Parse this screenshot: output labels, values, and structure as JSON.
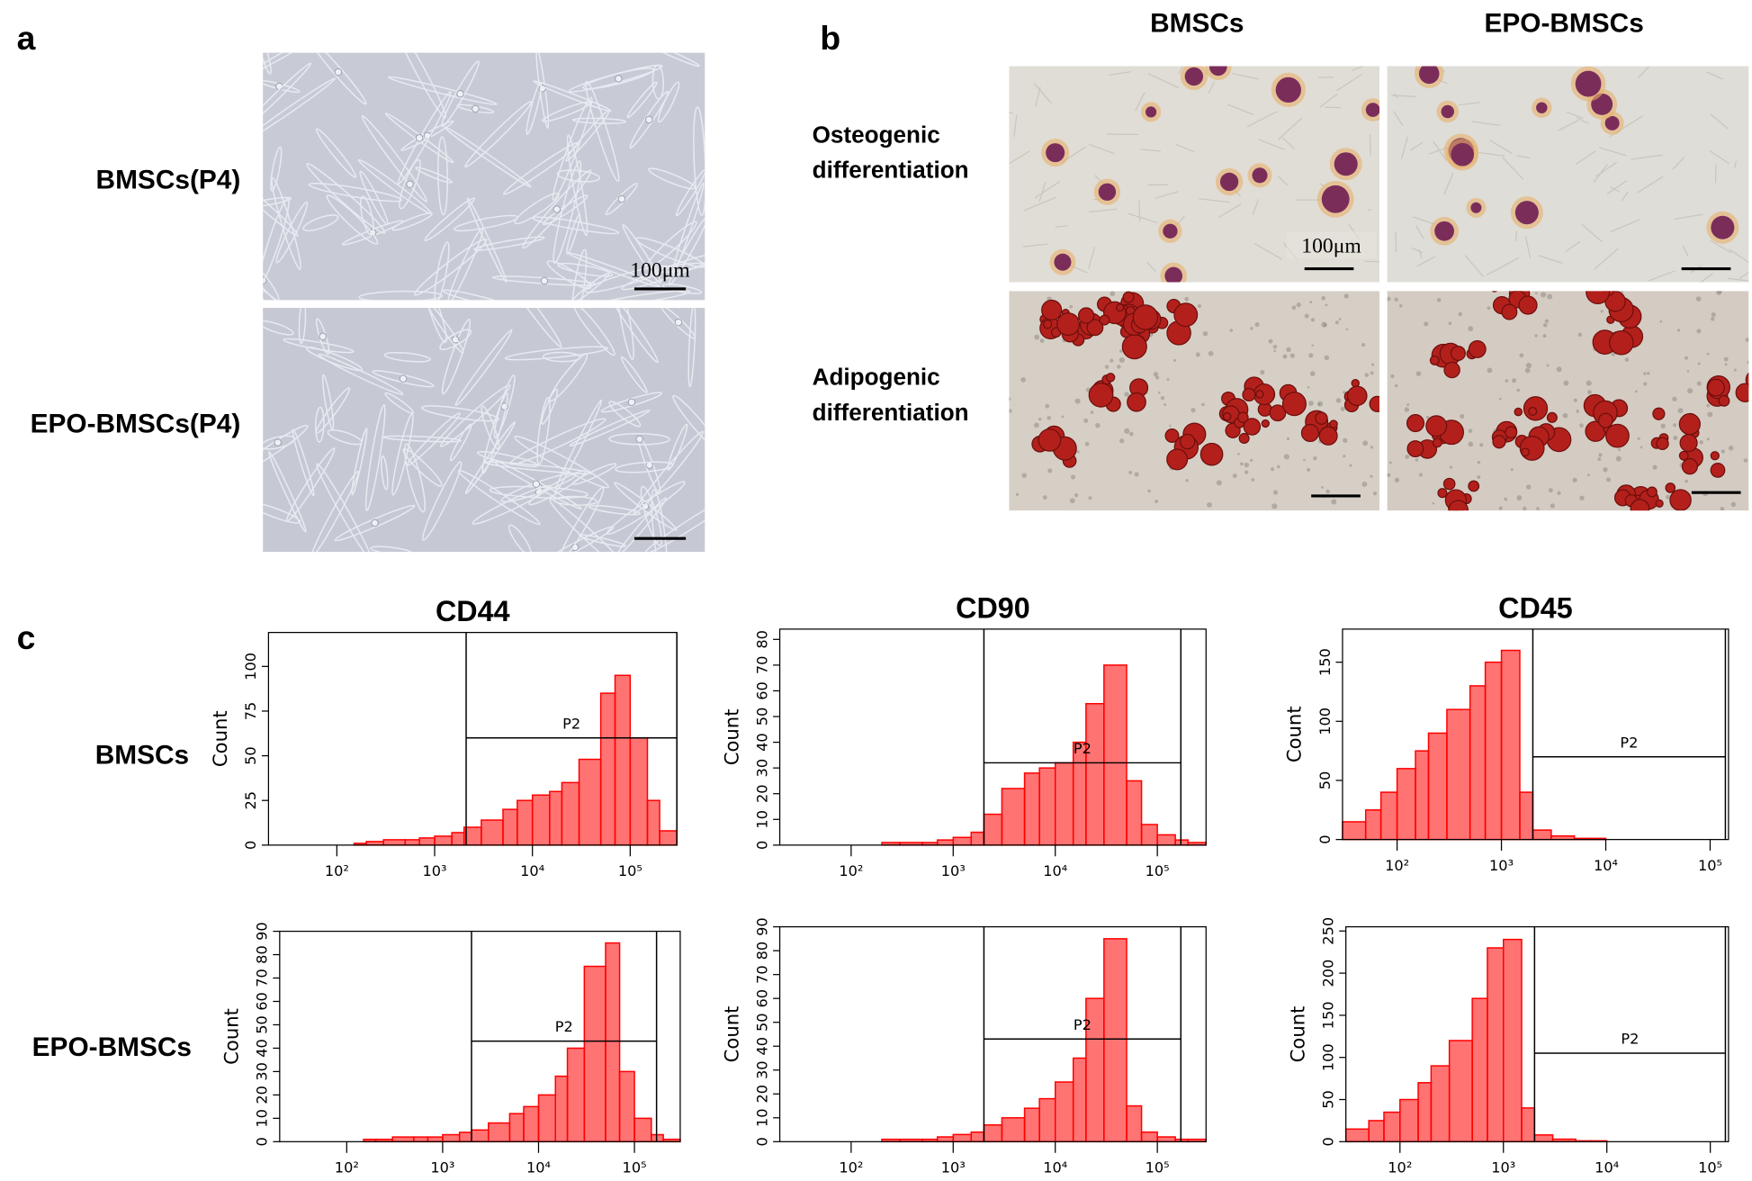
{
  "panel_a": {
    "label": "a",
    "rows": [
      "BMSCs(P4)",
      "EPO-BMSCs(P4)"
    ],
    "scale_bar": "100μm"
  },
  "panel_b": {
    "label": "b",
    "columns": [
      "BMSCs",
      "EPO-BMSCs"
    ],
    "rows": [
      [
        "Osteogenic",
        "differentiation"
      ],
      [
        "Adipogenic",
        "differentiation"
      ]
    ],
    "scale_bar": "100μm"
  },
  "panel_c": {
    "label": "c",
    "rows": [
      "BMSCs",
      "EPO-BMSCs"
    ]
  },
  "chart_data": [
    {
      "type": "histogram",
      "title": "CD44",
      "y_label": "Count",
      "x_scale": "log",
      "color": "#ff0000",
      "xlim": [
        20,
        300000
      ],
      "ylim": [
        0,
        119
      ],
      "yticks": [
        0,
        25,
        50,
        75,
        100
      ],
      "xticks": [
        {
          "value": 100,
          "label": "10²"
        },
        {
          "value": 1000,
          "label": "10³"
        },
        {
          "value": 10000,
          "label": "10⁴"
        },
        {
          "value": 100000,
          "label": "10⁵"
        }
      ],
      "bins": [
        20,
        30,
        50,
        100,
        150,
        200,
        300,
        500,
        700,
        1000,
        1500,
        2000,
        3000,
        5000,
        7000,
        10000,
        15000,
        20000,
        30000,
        50000,
        70000,
        100000,
        150000,
        200000,
        300000
      ],
      "counts": [
        0,
        0,
        0,
        0,
        1,
        2,
        3,
        3,
        4,
        5,
        7,
        10,
        14,
        20,
        25,
        28,
        30,
        35,
        48,
        85,
        95,
        60,
        25,
        8
      ],
      "gate": {
        "label": "P2",
        "range": [
          2100,
          300000
        ],
        "level": 60
      }
    },
    {
      "type": "histogram",
      "title": "CD90",
      "y_label": "Count",
      "x_scale": "log",
      "color": "#ff0000",
      "xlim": [
        20,
        300000
      ],
      "ylim": [
        0,
        84
      ],
      "yticks": [
        0,
        10,
        20,
        30,
        40,
        50,
        60,
        70,
        80
      ],
      "xticks": [
        {
          "value": 100,
          "label": "10²"
        },
        {
          "value": 1000,
          "label": "10³"
        },
        {
          "value": 10000,
          "label": "10⁴"
        },
        {
          "value": 100000,
          "label": "10⁵"
        }
      ],
      "bins": [
        20,
        30,
        50,
        100,
        150,
        200,
        300,
        500,
        700,
        1000,
        1500,
        2000,
        3000,
        5000,
        7000,
        10000,
        15000,
        20000,
        30000,
        50000,
        70000,
        100000,
        150000,
        200000,
        300000
      ],
      "counts": [
        0,
        0,
        0,
        0,
        0,
        1,
        1,
        1,
        2,
        3,
        5,
        12,
        22,
        28,
        30,
        32,
        40,
        55,
        70,
        25,
        8,
        4,
        2,
        1
      ],
      "gate": {
        "label": "P2",
        "range": [
          2000,
          170000
        ],
        "level": 32
      }
    },
    {
      "type": "histogram",
      "title": "CD45",
      "y_label": "Count",
      "x_scale": "log",
      "color": "#ff0000",
      "xlim": [
        30,
        150000
      ],
      "ylim": [
        0,
        178
      ],
      "yticks": [
        0,
        50,
        100,
        150
      ],
      "xticks": [
        {
          "value": 100,
          "label": "10²"
        },
        {
          "value": 1000,
          "label": "10³"
        },
        {
          "value": 10000,
          "label": "10⁴"
        },
        {
          "value": 100000,
          "label": "10⁵"
        }
      ],
      "bins": [
        30,
        50,
        70,
        100,
        150,
        200,
        300,
        500,
        700,
        1000,
        1500,
        2000,
        3000,
        5000,
        7000,
        10000,
        15000,
        20000,
        30000,
        50000,
        70000,
        100000,
        150000
      ],
      "counts": [
        15,
        25,
        40,
        60,
        75,
        90,
        110,
        130,
        150,
        160,
        40,
        8,
        3,
        1,
        1,
        0,
        0,
        0,
        0,
        0,
        0,
        0
      ],
      "gate": {
        "label": "P2",
        "range": [
          2000,
          140000
        ],
        "level": 70
      }
    },
    {
      "type": "histogram",
      "y_label": "Count",
      "x_scale": "log",
      "color": "#ff0000",
      "xlim": [
        20,
        300000
      ],
      "ylim": [
        0,
        90
      ],
      "yticks": [
        0,
        10,
        20,
        30,
        40,
        50,
        60,
        70,
        80,
        90
      ],
      "xticks": [
        {
          "value": 100,
          "label": "10²"
        },
        {
          "value": 1000,
          "label": "10³"
        },
        {
          "value": 10000,
          "label": "10⁴"
        },
        {
          "value": 100000,
          "label": "10⁵"
        }
      ],
      "bins": [
        20,
        30,
        50,
        100,
        150,
        200,
        300,
        500,
        700,
        1000,
        1500,
        2000,
        3000,
        5000,
        7000,
        10000,
        15000,
        20000,
        30000,
        50000,
        70000,
        100000,
        150000,
        200000,
        300000
      ],
      "counts": [
        0,
        0,
        0,
        0,
        1,
        1,
        2,
        2,
        2,
        3,
        4,
        5,
        8,
        12,
        15,
        20,
        28,
        40,
        75,
        85,
        30,
        10,
        3,
        1
      ],
      "gate": {
        "label": "P2",
        "range": [
          2000,
          170000
        ],
        "level": 43
      }
    },
    {
      "type": "histogram",
      "y_label": "Count",
      "x_scale": "log",
      "color": "#ff0000",
      "xlim": [
        20,
        300000
      ],
      "ylim": [
        0,
        90
      ],
      "yticks": [
        0,
        10,
        20,
        30,
        40,
        50,
        60,
        70,
        80,
        90
      ],
      "xticks": [
        {
          "value": 100,
          "label": "10²"
        },
        {
          "value": 1000,
          "label": "10³"
        },
        {
          "value": 10000,
          "label": "10⁴"
        },
        {
          "value": 100000,
          "label": "10⁵"
        }
      ],
      "bins": [
        20,
        30,
        50,
        100,
        150,
        200,
        300,
        500,
        700,
        1000,
        1500,
        2000,
        3000,
        5000,
        7000,
        10000,
        15000,
        20000,
        30000,
        50000,
        70000,
        100000,
        150000,
        200000,
        300000
      ],
      "counts": [
        0,
        0,
        0,
        0,
        0,
        1,
        1,
        1,
        2,
        3,
        4,
        7,
        10,
        14,
        18,
        25,
        35,
        60,
        85,
        15,
        4,
        2,
        1,
        1
      ],
      "gate": {
        "label": "P2",
        "range": [
          2000,
          170000
        ],
        "level": 43
      }
    },
    {
      "type": "histogram",
      "y_label": "Count",
      "x_scale": "log",
      "color": "#ff0000",
      "xlim": [
        30,
        150000
      ],
      "ylim": [
        0,
        255
      ],
      "yticks": [
        0,
        50,
        100,
        150,
        200,
        250
      ],
      "xticks": [
        {
          "value": 100,
          "label": "10²"
        },
        {
          "value": 1000,
          "label": "10³"
        },
        {
          "value": 10000,
          "label": "10⁴"
        },
        {
          "value": 100000,
          "label": "10⁵"
        }
      ],
      "bins": [
        30,
        50,
        70,
        100,
        150,
        200,
        300,
        500,
        700,
        1000,
        1500,
        2000,
        3000,
        5000,
        7000,
        10000,
        15000,
        20000,
        30000,
        50000,
        70000,
        100000,
        150000
      ],
      "counts": [
        15,
        25,
        35,
        50,
        70,
        90,
        120,
        170,
        230,
        240,
        40,
        8,
        3,
        1,
        1,
        0,
        0,
        0,
        0,
        0,
        0,
        0
      ],
      "gate": {
        "label": "P2",
        "range": [
          2000,
          140000
        ],
        "level": 105
      }
    }
  ]
}
